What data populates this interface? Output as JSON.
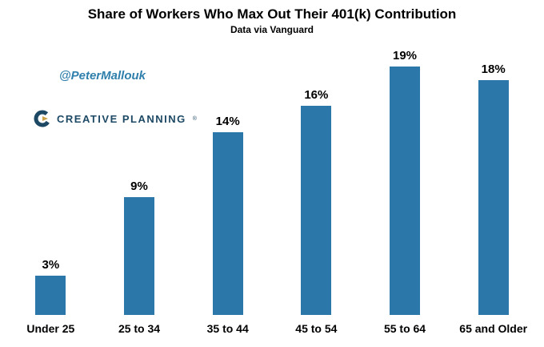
{
  "chart_data": {
    "type": "bar",
    "title": "Share of Workers Who Max Out Their 401(k) Contribution",
    "subtitle": "Data via Vanguard",
    "categories": [
      "Under 25",
      "25 to 34",
      "35 to 44",
      "45 to 54",
      "55 to 64",
      "65 and Older"
    ],
    "values": [
      3,
      9,
      14,
      16,
      19,
      18
    ],
    "value_labels": [
      "3%",
      "9%",
      "14%",
      "16%",
      "19%",
      "18%"
    ],
    "xlabel": "",
    "ylabel": "",
    "ylim": [
      0,
      20
    ],
    "grid": false,
    "legend": false,
    "bar_color": "#2b77a9"
  },
  "watermark": {
    "handle": "@PeterMallouk",
    "color": "#2e7fab"
  },
  "logo": {
    "text": "CREATIVE PLANNING",
    "mark": "®",
    "color": "#1d4965",
    "accent": "#c9a24a"
  }
}
